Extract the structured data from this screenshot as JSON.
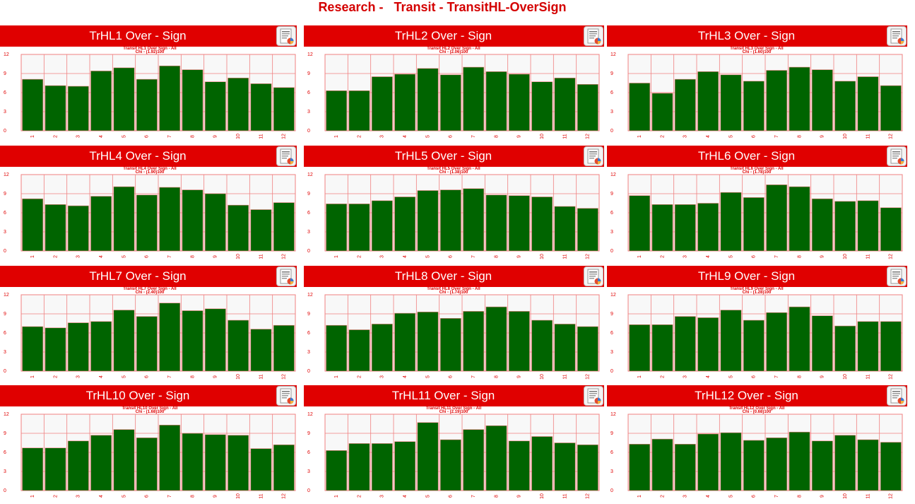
{
  "page": {
    "title": "Research -   Transit - TransitHL-OverSign"
  },
  "colors": {
    "accent": "#e00000",
    "title_text": "#d40000",
    "bar": "#006400",
    "grid": "#f08080",
    "plot_bg": "#f8f8f8"
  },
  "icons": {
    "report": "report-document-icon"
  },
  "panels": [
    {
      "header": "TrHL1 Over - Sign"
    },
    {
      "header": "TrHL2 Over - Sign"
    },
    {
      "header": "TrHL3 Over - Sign"
    },
    {
      "header": "TrHL4 Over - Sign"
    },
    {
      "header": "TrHL5 Over - Sign"
    },
    {
      "header": "TrHL6 Over - Sign"
    },
    {
      "header": "TrHL7 Over - Sign"
    },
    {
      "header": "TrHL8 Over - Sign"
    },
    {
      "header": "TrHL9 Over - Sign"
    },
    {
      "header": "TrHL10 Over - Sign"
    },
    {
      "header": "TrHL11 Over - Sign"
    },
    {
      "header": "TrHL12 Over - Sign"
    }
  ],
  "chart_data": [
    {
      "type": "bar",
      "title": "Transit HL1 Over Sign - All",
      "subtitle": "Chi - (1.92)100",
      "categories": [
        "1",
        "2",
        "3",
        "4",
        "5",
        "6",
        "7",
        "8",
        "9",
        "10",
        "11",
        "12"
      ],
      "values": [
        8.1,
        7.1,
        7.0,
        9.4,
        9.9,
        8.1,
        10.2,
        9.6,
        7.7,
        8.3,
        7.4,
        6.8
      ],
      "yticks": [
        0,
        3,
        6,
        9,
        12
      ],
      "ylim": [
        0,
        12
      ]
    },
    {
      "type": "bar",
      "title": "Transit HL2 Over Sign - All",
      "subtitle": "Chi - (2.06)100",
      "categories": [
        "1",
        "2",
        "3",
        "4",
        "5",
        "6",
        "7",
        "8",
        "9",
        "10",
        "11",
        "12"
      ],
      "values": [
        6.3,
        6.3,
        8.5,
        8.9,
        9.8,
        8.8,
        10.0,
        9.3,
        8.9,
        7.7,
        8.3,
        7.3
      ],
      "yticks": [
        0,
        3,
        6,
        9,
        12
      ],
      "ylim": [
        0,
        12
      ]
    },
    {
      "type": "bar",
      "title": "Transit HL3 Over Sign - All",
      "subtitle": "Chi - (1.60)100",
      "categories": [
        "1",
        "2",
        "3",
        "4",
        "5",
        "6",
        "7",
        "8",
        "9",
        "10",
        "11",
        "12"
      ],
      "values": [
        7.5,
        5.9,
        8.1,
        9.3,
        8.8,
        7.8,
        9.5,
        10.0,
        9.6,
        7.8,
        8.5,
        7.1
      ],
      "yticks": [
        0,
        3,
        6,
        9,
        12
      ],
      "ylim": [
        0,
        12
      ]
    },
    {
      "type": "bar",
      "title": "Transit HL4 Over Sign - All",
      "subtitle": "Chi - (1.90)100",
      "categories": [
        "1",
        "2",
        "3",
        "4",
        "5",
        "6",
        "7",
        "8",
        "9",
        "10",
        "11",
        "12"
      ],
      "values": [
        8.2,
        7.3,
        7.1,
        8.6,
        10.1,
        8.8,
        10.0,
        9.6,
        9.0,
        7.2,
        6.5,
        7.6
      ],
      "yticks": [
        0,
        3,
        6,
        9,
        12
      ],
      "ylim": [
        0,
        12
      ]
    },
    {
      "type": "bar",
      "title": "Transit HL5 Over Sign - All",
      "subtitle": "Chi - (1.38)100",
      "categories": [
        "1",
        "2",
        "3",
        "4",
        "5",
        "6",
        "7",
        "8",
        "9",
        "10",
        "11",
        "12"
      ],
      "values": [
        7.4,
        7.4,
        7.9,
        8.5,
        9.5,
        9.6,
        9.8,
        8.8,
        8.7,
        8.5,
        7.0,
        6.7
      ],
      "yticks": [
        0,
        3,
        6,
        9,
        12
      ],
      "ylim": [
        0,
        12
      ]
    },
    {
      "type": "bar",
      "title": "Transit HL6 Over Sign - All",
      "subtitle": "Chi - (1.78)100",
      "categories": [
        "1",
        "2",
        "3",
        "4",
        "5",
        "6",
        "7",
        "8",
        "9",
        "10",
        "11",
        "12"
      ],
      "values": [
        8.7,
        7.3,
        7.3,
        7.5,
        9.2,
        8.4,
        10.4,
        10.1,
        8.2,
        7.8,
        7.9,
        6.8
      ],
      "yticks": [
        0,
        3,
        6,
        9,
        12
      ],
      "ylim": [
        0,
        12
      ]
    },
    {
      "type": "bar",
      "title": "Transit HL7 Over Sign - All",
      "subtitle": "Chi - (2.40)100",
      "categories": [
        "1",
        "2",
        "3",
        "4",
        "5",
        "6",
        "7",
        "8",
        "9",
        "10",
        "11",
        "12"
      ],
      "values": [
        7.0,
        6.8,
        7.6,
        7.8,
        9.6,
        8.6,
        10.7,
        9.5,
        9.8,
        8.0,
        6.6,
        7.2
      ],
      "yticks": [
        0,
        3,
        6,
        9,
        12
      ],
      "ylim": [
        0,
        12
      ]
    },
    {
      "type": "bar",
      "title": "Transit HL8 Over Sign - All",
      "subtitle": "Chi - (1.74)100",
      "categories": [
        "1",
        "2",
        "3",
        "4",
        "5",
        "6",
        "7",
        "8",
        "9",
        "10",
        "11",
        "12"
      ],
      "values": [
        7.2,
        6.5,
        7.4,
        9.1,
        9.3,
        8.3,
        9.4,
        10.1,
        9.4,
        8.0,
        7.4,
        7.0
      ],
      "yticks": [
        0,
        3,
        6,
        9,
        12
      ],
      "ylim": [
        0,
        12
      ]
    },
    {
      "type": "bar",
      "title": "Transit HL9 Over Sign - All",
      "subtitle": "Chi - (1.28)100",
      "categories": [
        "1",
        "2",
        "3",
        "4",
        "5",
        "6",
        "7",
        "8",
        "9",
        "10",
        "11",
        "12"
      ],
      "values": [
        7.3,
        7.3,
        8.6,
        8.4,
        9.6,
        8.0,
        9.2,
        10.1,
        8.7,
        7.1,
        7.8,
        7.8
      ],
      "yticks": [
        0,
        3,
        6,
        9,
        12
      ],
      "ylim": [
        0,
        12
      ]
    },
    {
      "type": "bar",
      "title": "Transit HL10 Over Sign - All",
      "subtitle": "Chi - (1.68)100",
      "categories": [
        "1",
        "2",
        "3",
        "4",
        "5",
        "6",
        "7",
        "8",
        "9",
        "10",
        "11",
        "12"
      ],
      "values": [
        6.7,
        6.7,
        7.8,
        8.7,
        9.6,
        8.3,
        10.3,
        9.0,
        8.8,
        8.7,
        6.6,
        7.2
      ],
      "yticks": [
        0,
        3,
        6,
        9,
        12
      ],
      "ylim": [
        0,
        12
      ]
    },
    {
      "type": "bar",
      "title": "Transit HL11 Over Sign - All",
      "subtitle": "Chi - (2.19)100",
      "categories": [
        "1",
        "2",
        "3",
        "4",
        "5",
        "6",
        "7",
        "8",
        "9",
        "10",
        "11",
        "12"
      ],
      "values": [
        6.3,
        7.4,
        7.4,
        7.7,
        10.7,
        8.0,
        9.6,
        10.2,
        7.8,
        8.5,
        7.5,
        7.2
      ],
      "yticks": [
        0,
        3,
        6,
        9,
        12
      ],
      "ylim": [
        0,
        12
      ]
    },
    {
      "type": "bar",
      "title": "Transit HL12 Over Sign - All",
      "subtitle": "Chi - (0.68)100",
      "categories": [
        "1",
        "2",
        "3",
        "4",
        "5",
        "6",
        "7",
        "8",
        "9",
        "10",
        "11",
        "12"
      ],
      "values": [
        7.3,
        8.1,
        7.3,
        8.9,
        9.1,
        7.9,
        8.3,
        9.2,
        7.8,
        8.7,
        8.0,
        7.6
      ],
      "yticks": [
        0,
        3,
        6,
        9,
        12
      ],
      "ylim": [
        0,
        12
      ]
    }
  ]
}
